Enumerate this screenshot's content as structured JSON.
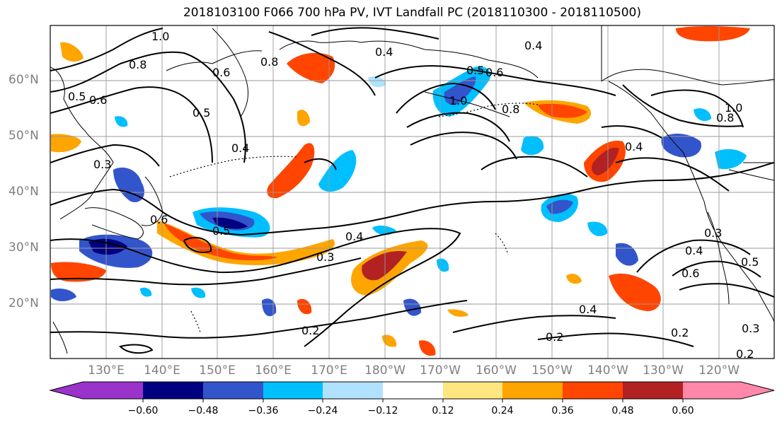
{
  "title": "2018103100 F066 700 hPa PV, IVT Landfall PC (2018110300 - 2018110500)",
  "lat_labels": [
    "60°N",
    "50°N",
    "40°N",
    "30°N",
    "20°N"
  ],
  "lon_labels": [
    "130°E",
    "140°E",
    "150°E",
    "160°E",
    "170°E",
    "180°W",
    "170°W",
    "160°W",
    "150°W",
    "140°W",
    "130°W",
    "120°W"
  ],
  "contour_labels": [
    "1.0",
    "0.8",
    "0.8",
    "0.6",
    "0.5",
    "0.6",
    "0.5",
    "0.4",
    "0.4",
    "0.3",
    "0.4",
    "0.3",
    "0.6",
    "0.5",
    "0.6",
    "1.0",
    "0.8",
    "0.4",
    "0.5",
    "0.8",
    "1.0",
    "0.4",
    "0.3",
    "0.4",
    "0.5",
    "0.6",
    "0.2",
    "0.2",
    "0.4",
    "0.2",
    "0.3",
    "0.2"
  ],
  "colorbar": {
    "ticks": [
      "−0.60",
      "−0.48",
      "−0.36",
      "−0.24",
      "−0.12",
      "0.12",
      "0.24",
      "0.36",
      "0.48",
      "0.60"
    ],
    "colors": [
      "#9933cc",
      "#000080",
      "#3355cc",
      "#00bfff",
      "#b0e2ff",
      "#ffffff",
      "#ffe680",
      "#ffa500",
      "#ff4500",
      "#b22222",
      "#ff88aa"
    ]
  },
  "legend_colors": {
    "land_line": "#000000",
    "grid_line": "#999999",
    "contour_line": "#000000"
  }
}
